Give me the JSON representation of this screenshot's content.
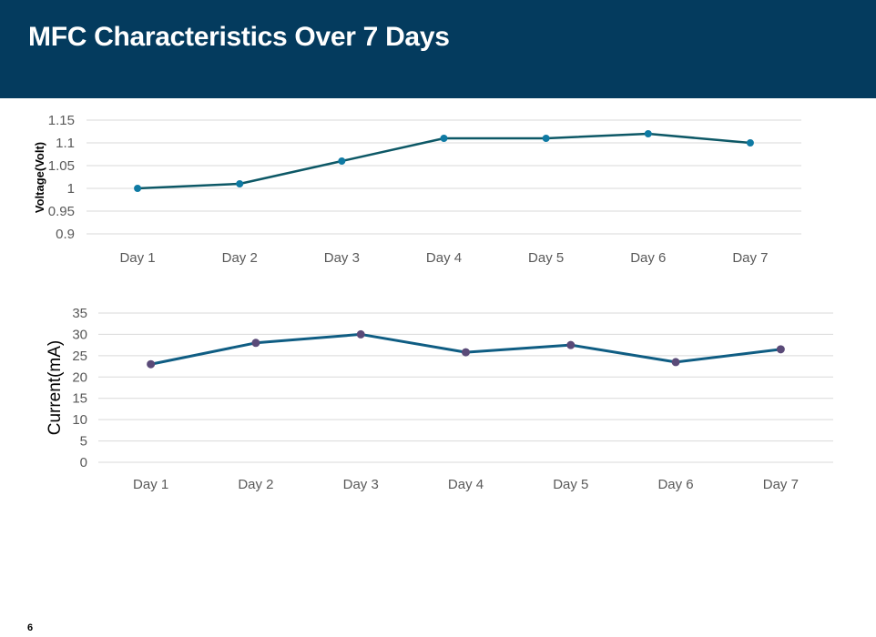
{
  "slide": {
    "title": "MFC Characteristics Over 7 Days",
    "page_number": "6",
    "header_color": "#043b5e"
  },
  "chart_data": [
    {
      "type": "line",
      "title": "",
      "xlabel": "",
      "ylabel": "Voltage(Volt)",
      "categories": [
        "Day 1",
        "Day 2",
        "Day 3",
        "Day 4",
        "Day 5",
        "Day 6",
        "Day 7"
      ],
      "series": [
        {
          "values": [
            1.0,
            1.01,
            1.06,
            1.11,
            1.11,
            1.12,
            1.1
          ],
          "color": "#0d5866",
          "marker_color": "#0f7aa3"
        }
      ],
      "yticks": [
        "0.9",
        "0.95",
        "1",
        "1.05",
        "1.1",
        "1.15"
      ],
      "ylim": [
        0.9,
        1.15
      ],
      "grid": true,
      "legend": "none"
    },
    {
      "type": "line",
      "title": "",
      "xlabel": "",
      "ylabel": "Current(mA)",
      "categories": [
        "Day 1",
        "Day 2",
        "Day 3",
        "Day 4",
        "Day 5",
        "Day 6",
        "Day 7"
      ],
      "series": [
        {
          "values": [
            23,
            28,
            30,
            25.8,
            27.5,
            23.5,
            26.5
          ],
          "color": "#0f5d83",
          "marker_color": "#5a4a78"
        }
      ],
      "yticks": [
        "0",
        "5",
        "10",
        "15",
        "20",
        "25",
        "30",
        "35"
      ],
      "ylim": [
        0,
        35
      ],
      "grid": true,
      "legend": "none"
    }
  ]
}
